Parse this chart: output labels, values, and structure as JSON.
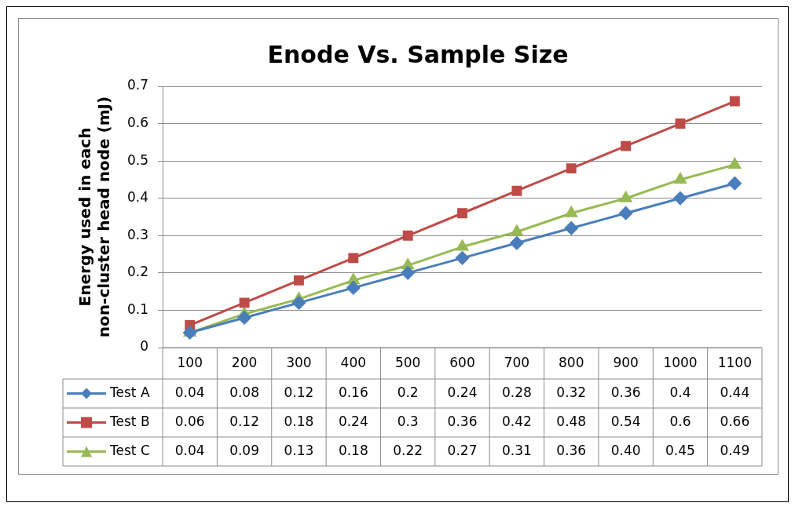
{
  "chart_data": {
    "type": "line",
    "title": "Enode Vs. Sample Size",
    "ylabel": "Energy used in each non-cluster head node (mJ)",
    "categories": [
      "100",
      "200",
      "300",
      "400",
      "500",
      "600",
      "700",
      "800",
      "900",
      "1000",
      "1100"
    ],
    "ylim": [
      0,
      0.7
    ],
    "yticks": [
      0,
      0.1,
      0.2,
      0.3,
      0.4,
      0.5,
      0.6,
      0.7
    ],
    "grid": "y",
    "legend": "bottom",
    "series": [
      {
        "name": "Test A",
        "color": "#4a7ebb",
        "marker": "diamond",
        "values": [
          0.04,
          0.08,
          0.12,
          0.16,
          0.2,
          0.24,
          0.28,
          0.32,
          0.36,
          0.4,
          0.44
        ],
        "value_labels": [
          "0.04",
          "0.08",
          "0.12",
          "0.16",
          "0.2",
          "0.24",
          "0.28",
          "0.32",
          "0.36",
          "0.4",
          "0.44"
        ]
      },
      {
        "name": "Test B",
        "color": "#be4b48",
        "marker": "square",
        "values": [
          0.06,
          0.12,
          0.18,
          0.24,
          0.3,
          0.36,
          0.42,
          0.48,
          0.54,
          0.6,
          0.66
        ],
        "value_labels": [
          "0.06",
          "0.12",
          "0.18",
          "0.24",
          "0.3",
          "0.36",
          "0.42",
          "0.48",
          "0.54",
          "0.6",
          "0.66"
        ]
      },
      {
        "name": "Test C",
        "color": "#98b954",
        "marker": "triangle",
        "values": [
          0.04,
          0.09,
          0.13,
          0.18,
          0.22,
          0.27,
          0.31,
          0.36,
          0.4,
          0.45,
          0.49
        ],
        "value_labels": [
          "0.04",
          "0.09",
          "0.13",
          "0.18",
          "0.22",
          "0.27",
          "0.31",
          "0.36",
          "0.40",
          "0.45",
          "0.49"
        ]
      }
    ]
  }
}
